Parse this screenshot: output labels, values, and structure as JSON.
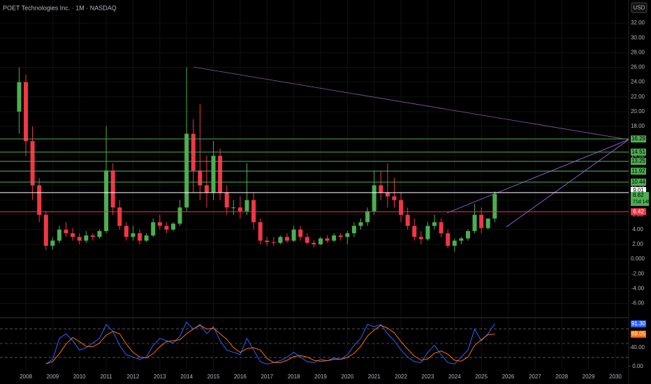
{
  "chart_data": {
    "type": "candlestick",
    "title": "POET Technologies Inc. · 1M · NASDAQ",
    "currency": "USD",
    "categories": [
      "2008",
      "2009",
      "2010",
      "2011",
      "2012",
      "2013",
      "2014",
      "2015",
      "2016",
      "2017",
      "2018",
      "2019",
      "2020",
      "2021",
      "2022",
      "2023",
      "2024",
      "2025",
      "2026",
      "2027",
      "2028",
      "2029",
      "2030"
    ],
    "ylim": [
      -7,
      34
    ],
    "yticks": [
      {
        "value": -6,
        "label": "-6.00"
      },
      {
        "value": -4,
        "label": "-4.00"
      },
      {
        "value": -2,
        "label": "-2.00"
      },
      {
        "value": 0,
        "label": "0.000"
      },
      {
        "value": 2,
        "label": "2.00"
      },
      {
        "value": 4,
        "label": "4.00"
      },
      {
        "value": 6,
        "label": "6.00"
      },
      {
        "value": 8,
        "label": "8.00"
      },
      {
        "value": 10,
        "label": "10.00"
      },
      {
        "value": 12,
        "label": "12.00"
      },
      {
        "value": 14,
        "label": "14.00"
      },
      {
        "value": 16,
        "label": "16.00"
      },
      {
        "value": 18,
        "label": "18.00"
      },
      {
        "value": 20,
        "label": "20.00"
      },
      {
        "value": 22,
        "label": "22.00"
      },
      {
        "value": 24,
        "label": "24.00"
      },
      {
        "value": 26,
        "label": "26.00"
      },
      {
        "value": 28,
        "label": "28.00"
      },
      {
        "value": 30,
        "label": "30.00"
      },
      {
        "value": 32,
        "label": "32.00"
      }
    ],
    "candles": {
      "open": [
        20,
        24,
        16,
        10,
        6,
        1.8,
        2.5,
        4,
        3.5,
        3,
        2.5,
        3.2,
        3,
        3.8,
        12,
        7,
        4.5,
        3,
        3.5,
        2.5,
        3.2,
        5,
        4.5,
        4,
        4.8,
        7,
        17,
        12,
        10,
        9,
        14,
        9,
        7,
        7,
        6.5,
        8,
        5,
        2.5,
        2.3,
        2.2,
        3,
        2.5,
        4,
        3,
        2.2,
        2,
        2.8,
        2.5,
        3.2,
        3,
        3.5,
        4.5,
        5,
        6.5,
        10,
        9,
        8.5,
        8,
        6,
        4.5,
        3,
        2.7,
        4.5,
        5,
        3.5,
        1.8,
        2.5,
        2.8,
        3.8,
        6,
        4.2,
        5.5
      ],
      "high": [
        26,
        25,
        18,
        11,
        6.5,
        3,
        4.5,
        5,
        4.2,
        3.5,
        3.8,
        3.5,
        4,
        18,
        13,
        8,
        5,
        4.5,
        4,
        3.5,
        5.5,
        6,
        5,
        5,
        8,
        26,
        19,
        21,
        14,
        16,
        15,
        10,
        8,
        8.5,
        13,
        9,
        5.5,
        3,
        3,
        3.2,
        3.5,
        4.5,
        4.5,
        3.5,
        2.6,
        3,
        3.2,
        3.5,
        3.5,
        3.8,
        5,
        5.5,
        7,
        12,
        12,
        13,
        11,
        9,
        7,
        5.5,
        3.8,
        5,
        6,
        5.5,
        4,
        2.8,
        3,
        4,
        7.5,
        7,
        5.5,
        9.2
      ],
      "low": [
        17,
        14,
        8,
        5,
        1.2,
        1.3,
        2.2,
        3,
        2.5,
        2,
        2.2,
        2.5,
        2.8,
        3.5,
        6,
        4,
        2.5,
        2.5,
        2,
        2.3,
        3,
        4,
        3.5,
        3.8,
        4.5,
        6.5,
        9,
        8,
        7,
        8,
        8,
        6,
        6,
        5.5,
        6,
        4,
        2,
        1.8,
        1.8,
        2,
        2.2,
        2.3,
        2.5,
        2,
        1.6,
        1.9,
        2.2,
        2.3,
        2.5,
        2,
        3,
        4,
        4.5,
        6,
        8,
        7,
        7,
        5,
        4,
        2.5,
        2,
        2.5,
        4,
        3,
        1.5,
        1,
        2,
        2.5,
        3.5,
        3.5,
        4,
        5
      ],
      "close": [
        24,
        16,
        10,
        6,
        1.8,
        2.5,
        4,
        3.5,
        3,
        2.5,
        3.2,
        3,
        3.8,
        12,
        7,
        4.5,
        3,
        3.5,
        2.5,
        3.2,
        5,
        4.5,
        4,
        4.8,
        7,
        17,
        12,
        10,
        9,
        14,
        9,
        7,
        7,
        6.5,
        8,
        5,
        2.5,
        2.3,
        2.2,
        3,
        2.5,
        4,
        3,
        2.2,
        2,
        2.8,
        2.5,
        3.2,
        3,
        3.5,
        4.5,
        5,
        6.5,
        10,
        9,
        8.5,
        8,
        6,
        4.5,
        3,
        2.7,
        4.5,
        5,
        3.5,
        1.8,
        2.5,
        2.8,
        3.8,
        6,
        4.2,
        5.5,
        8.82
      ]
    },
    "up_color": "#4caf50",
    "down_color": "#f23645",
    "levels": [
      {
        "value": 16.29,
        "color": "#4caf50"
      },
      {
        "value": 14.51,
        "color": "#4caf50"
      },
      {
        "value": 13.25,
        "color": "#4caf50"
      },
      {
        "value": 11.92,
        "color": "#4caf50"
      },
      {
        "value": 10.44,
        "color": "#4caf50"
      },
      {
        "value": 9.01,
        "color": "#ffffff"
      },
      {
        "value": 6.42,
        "color": "#f23645"
      }
    ],
    "last_price": 8.82,
    "countdown": "71d 14h",
    "oscillator": {
      "ylim": [
        -5,
        100
      ],
      "yticks": [
        {
          "value": 0,
          "label": "0.00"
        },
        {
          "value": 40,
          "label": "40.00"
        }
      ],
      "series": [
        {
          "color": "#2962ff",
          "values": [
            null,
            null,
            null,
            null,
            5,
            15,
            60,
            70,
            55,
            35,
            40,
            50,
            60,
            90,
            75,
            45,
            25,
            20,
            15,
            20,
            45,
            60,
            55,
            50,
            65,
            95,
            80,
            90,
            70,
            85,
            55,
            35,
            30,
            25,
            60,
            35,
            10,
            5,
            8,
            12,
            20,
            30,
            20,
            10,
            8,
            15,
            12,
            18,
            15,
            25,
            45,
            60,
            90,
            85,
            90,
            70,
            55,
            35,
            20,
            10,
            8,
            30,
            45,
            25,
            8,
            5,
            20,
            35,
            80,
            55,
            70,
            91.3
          ],
          "last_label": "91.30"
        },
        {
          "color": "#ff6d00",
          "values": [
            null,
            null,
            null,
            null,
            5,
            10,
            27,
            48,
            62,
            53,
            43,
            42,
            50,
            67,
            75,
            70,
            48,
            30,
            20,
            18,
            27,
            42,
            53,
            55,
            57,
            70,
            80,
            88,
            80,
            82,
            70,
            58,
            40,
            30,
            38,
            40,
            35,
            17,
            8,
            8,
            13,
            21,
            23,
            20,
            13,
            11,
            12,
            15,
            15,
            19,
            28,
            43,
            65,
            78,
            88,
            82,
            72,
            53,
            37,
            22,
            13,
            16,
            28,
            33,
            26,
            13,
            11,
            20,
            45,
            57,
            68,
            69.05
          ]
        }
      ]
    }
  }
}
